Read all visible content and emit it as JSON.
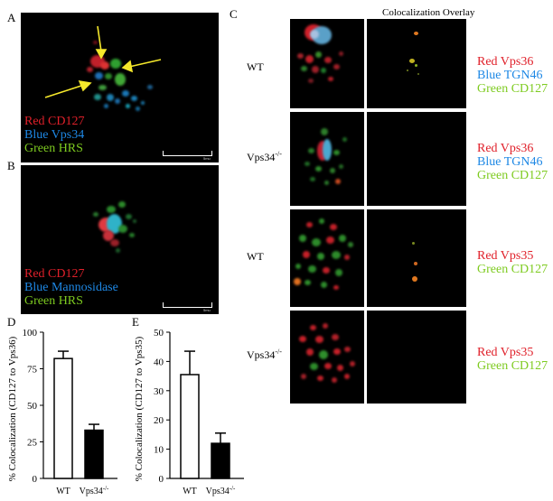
{
  "panels": {
    "a": "A",
    "b": "B",
    "c": "C",
    "d": "D",
    "e": "E"
  },
  "panel_a": {
    "legend": [
      "Red CD127",
      "Blue Vps34",
      "Green HRS"
    ],
    "scale": "5mu"
  },
  "panel_b": {
    "legend": [
      "Red CD127",
      "Blue Mannosidase",
      "Green HRS"
    ],
    "scale": "5mu"
  },
  "panel_c": {
    "header": "Colocalization Overlay",
    "rows": [
      {
        "label": "WT",
        "sup": "",
        "legend": [
          "Red Vps36",
          "Blue TGN46",
          "Green CD127"
        ]
      },
      {
        "label": "Vps34",
        "sup": "-/-",
        "legend": [
          "Red Vps36",
          "Blue TGN46",
          "Green CD127"
        ]
      },
      {
        "label": "WT",
        "sup": "",
        "legend": [
          "Red Vps35",
          "Green CD127"
        ]
      },
      {
        "label": "Vps34",
        "sup": "-/-",
        "legend": [
          "Red Vps35",
          "Green CD127"
        ]
      }
    ]
  },
  "colors": {
    "red": "#e0202a",
    "blue": "#1e88e5",
    "green": "#7ecb20",
    "bar_fill": "#000000"
  },
  "chart_data": [
    {
      "type": "bar",
      "panel": "D",
      "categories": [
        "WT",
        "Vps34-/-"
      ],
      "tick_labels": [
        {
          "text": "WT",
          "sup": ""
        },
        {
          "text": "Vps34",
          "sup": "-/-"
        }
      ],
      "values": [
        82,
        33
      ],
      "errors": [
        5,
        4
      ],
      "fills": [
        "white",
        "black"
      ],
      "ylabel": "% Colocalization (CD127 to Vps36)",
      "ylim": [
        0,
        100
      ],
      "yticks": [
        0,
        25,
        50,
        75,
        100
      ]
    },
    {
      "type": "bar",
      "panel": "E",
      "categories": [
        "WT",
        "Vps34-/-"
      ],
      "tick_labels": [
        {
          "text": "WT",
          "sup": ""
        },
        {
          "text": "Vps34",
          "sup": "-/-"
        }
      ],
      "values": [
        35.5,
        12
      ],
      "errors": [
        8,
        3.5
      ],
      "fills": [
        "white",
        "black"
      ],
      "ylabel": "% Colocalization (CD127 to Vps35)",
      "ylim": [
        0,
        50
      ],
      "yticks": [
        0,
        10,
        20,
        30,
        40,
        50
      ]
    }
  ]
}
